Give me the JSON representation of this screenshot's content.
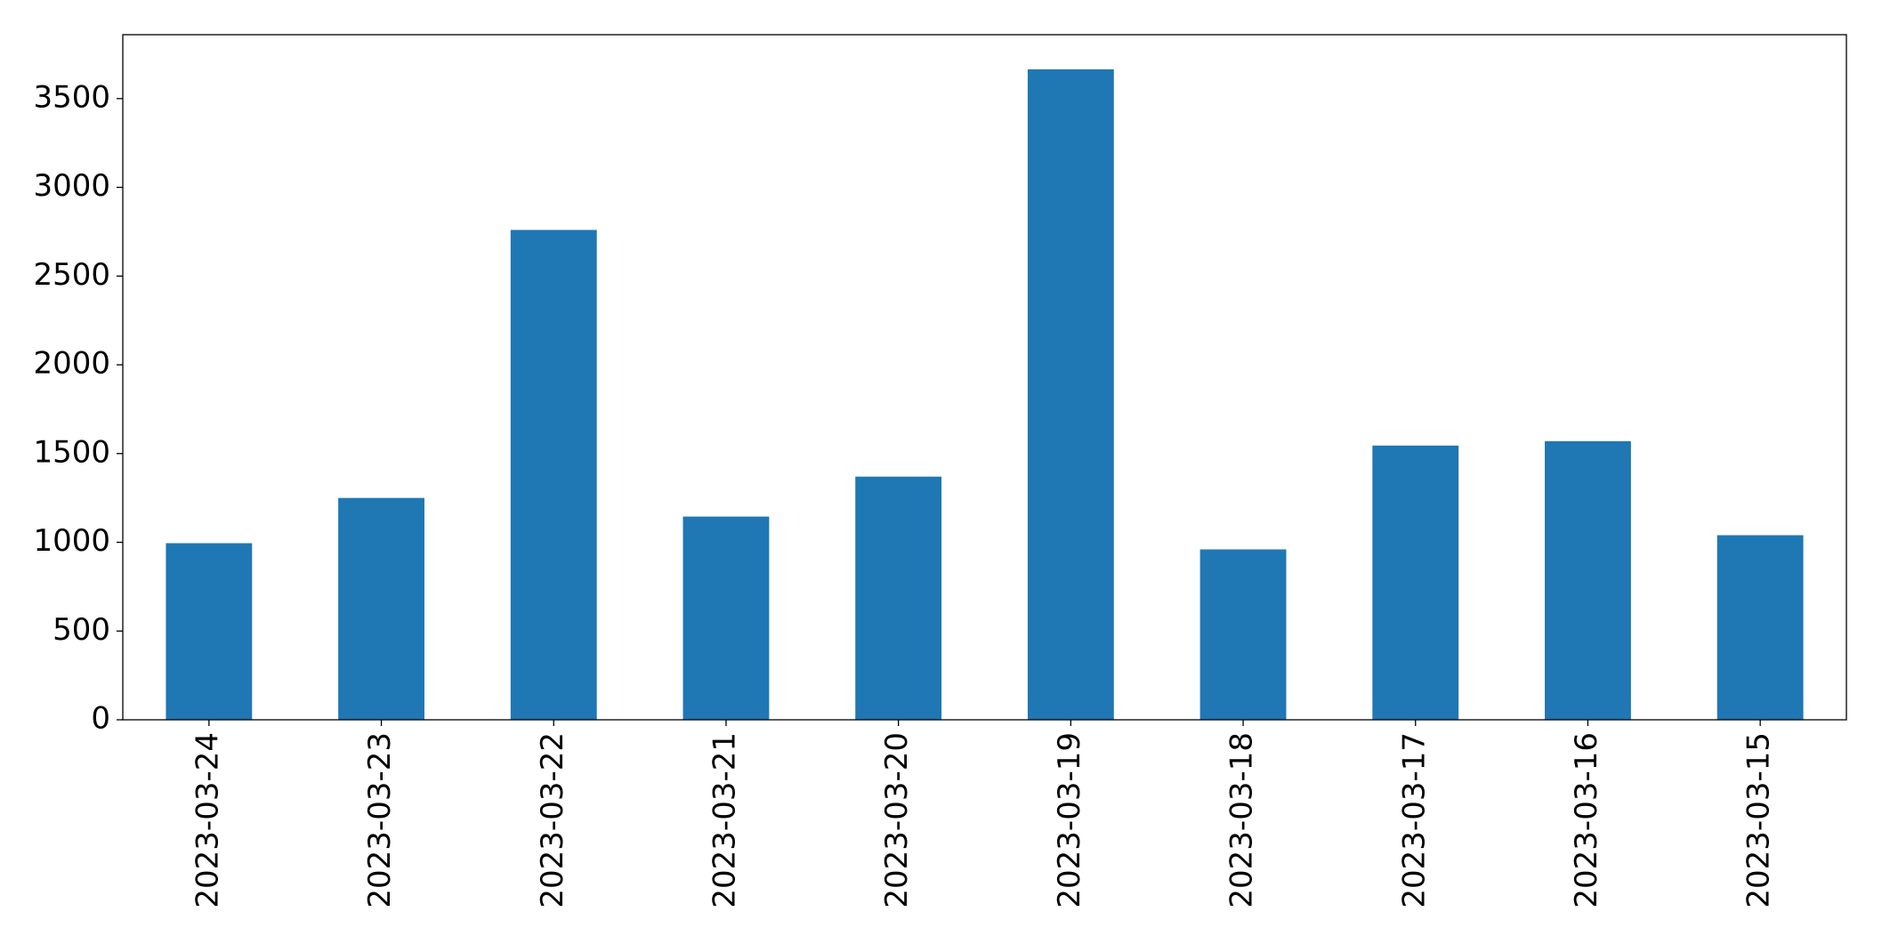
{
  "chart_data": {
    "type": "bar",
    "categories": [
      "2023-03-24",
      "2023-03-23",
      "2023-03-22",
      "2023-03-21",
      "2023-03-20",
      "2023-03-19",
      "2023-03-18",
      "2023-03-17",
      "2023-03-16",
      "2023-03-15"
    ],
    "values": [
      995,
      1250,
      2760,
      1145,
      1370,
      3665,
      960,
      1545,
      1570,
      1040
    ],
    "color": "#1f77b4",
    "ylim": [
      0,
      3860
    ],
    "yticks": [
      0,
      500,
      1000,
      1500,
      2000,
      2500,
      3000,
      3500
    ],
    "grid": false
  }
}
